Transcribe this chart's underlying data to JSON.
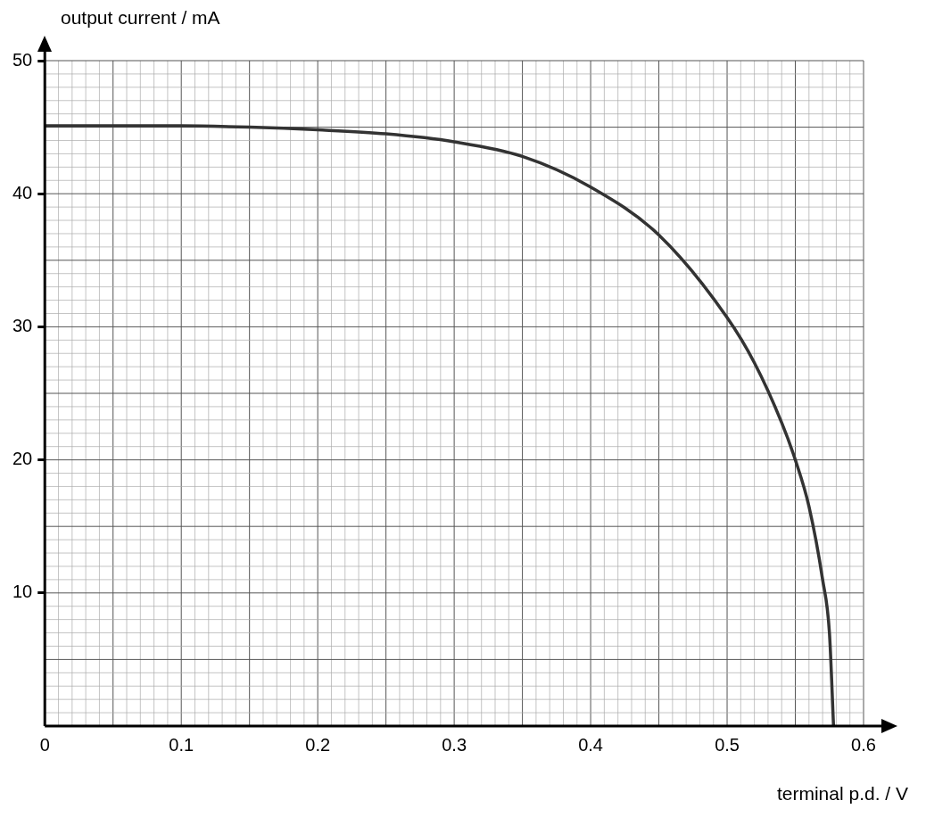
{
  "chart_data": {
    "type": "line",
    "xlabel": "terminal p.d. / V",
    "ylabel": "output current / mA",
    "xlim": [
      0,
      0.6
    ],
    "ylim": [
      0,
      50
    ],
    "xticks": [
      0,
      0.1,
      0.2,
      0.3,
      0.4,
      0.5,
      0.6
    ],
    "yticks": [
      10,
      20,
      30,
      40,
      50
    ],
    "grid": true,
    "marker": "none",
    "line_style": "solid",
    "series": [
      {
        "color": "#333333",
        "x": [
          0,
          0.05,
          0.1,
          0.15,
          0.2,
          0.25,
          0.3,
          0.35,
          0.4,
          0.45,
          0.5,
          0.52,
          0.54,
          0.55,
          0.56,
          0.57,
          0.575,
          0.578
        ],
        "values": [
          45.1,
          45.1,
          45.1,
          45.0,
          44.8,
          44.5,
          43.9,
          42.8,
          40.5,
          36.9,
          30.7,
          27.3,
          22.8,
          20.0,
          16.5,
          11,
          7,
          0
        ]
      }
    ]
  }
}
